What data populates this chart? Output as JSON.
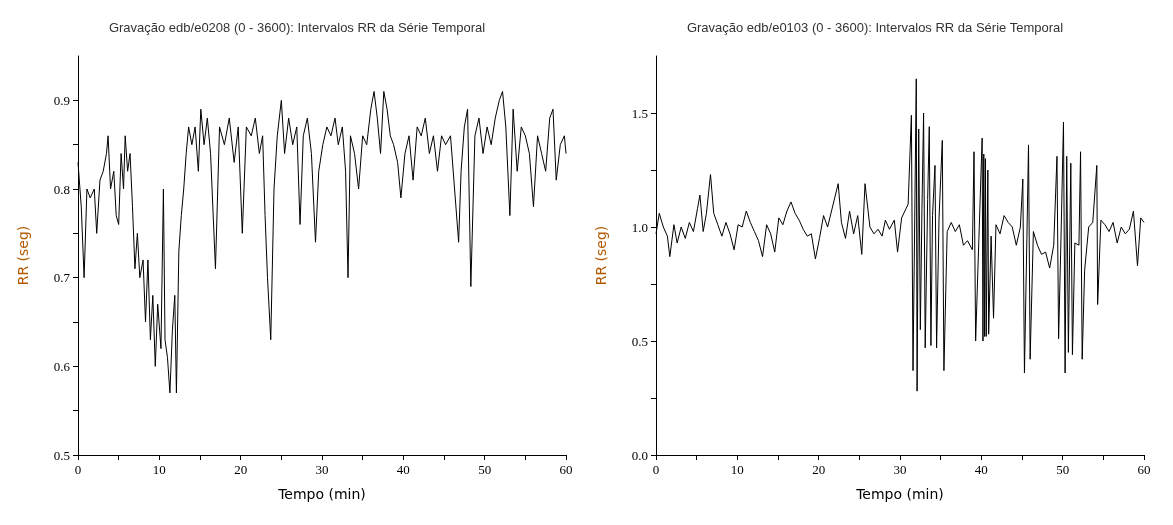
{
  "chart_data": [
    {
      "type": "line",
      "title": "Gravação edb/e0208 (0 - 3600): Intervalos RR da Série Temporal",
      "xlabel": "Tempo (min)",
      "ylabel": "RR (seg)",
      "xlim": [
        0,
        60
      ],
      "ylim": [
        0.5,
        0.95
      ],
      "xticks": [
        0,
        {
          "value": 5,
          "label": null
        },
        10,
        {
          "value": 15,
          "label": null
        },
        20,
        {
          "value": 25,
          "label": null
        },
        30,
        {
          "value": 35,
          "label": null
        },
        40,
        {
          "value": 45,
          "label": null
        },
        50,
        {
          "value": 55,
          "label": null
        },
        60
      ],
      "yticks": [
        0.5,
        {
          "value": 0.55,
          "label": null
        },
        0.6,
        {
          "value": 0.65,
          "label": null
        },
        0.7,
        {
          "value": 0.75,
          "label": null
        },
        0.8,
        {
          "value": 0.85,
          "label": null
        },
        0.9
      ],
      "grid": false,
      "marker": "none",
      "line_style": "solid",
      "series": [
        {
          "color": "#000000",
          "x": [
            0,
            0.4,
            0.75,
            1.1,
            1.5,
            2,
            2.3,
            2.7,
            3.1,
            3.5,
            3.7,
            4,
            4.4,
            4.7,
            5,
            5.3,
            5.6,
            5.8,
            6.1,
            6.4,
            6.7,
            7,
            7.3,
            7.6,
            8,
            8.3,
            8.6,
            8.9,
            9.2,
            9.5,
            9.8,
            10.2,
            10.5,
            10.7,
            11,
            11.3,
            11.6,
            11.9,
            12.1,
            12.4,
            12.7,
            13,
            13.3,
            13.6,
            14,
            14.4,
            14.8,
            15.1,
            15.5,
            15.9,
            16.3,
            16.9,
            17.4,
            18,
            18.6,
            19.2,
            19.7,
            20.2,
            20.7,
            21.3,
            21.8,
            22.3,
            22.7,
            23,
            23.3,
            23.7,
            24.1,
            24.5,
            25,
            25.4,
            25.9,
            26.4,
            26.9,
            27.3,
            27.7,
            28.2,
            28.7,
            29.2,
            29.6,
            30.1,
            30.6,
            31.1,
            31.6,
            32,
            32.5,
            32.9,
            33.2,
            33.5,
            34,
            34.5,
            35,
            35.5,
            36,
            36.4,
            36.8,
            37.2,
            37.6,
            38,
            38.4,
            38.8,
            39.3,
            39.7,
            40.2,
            40.7,
            41.2,
            41.7,
            42.2,
            42.7,
            43.2,
            43.7,
            44.2,
            44.7,
            45.2,
            45.8,
            46.3,
            46.8,
            47.1,
            47.5,
            47.9,
            48.3,
            48.8,
            49.3,
            49.8,
            50.3,
            50.8,
            51.3,
            51.8,
            52.2,
            52.6,
            53.1,
            53.5,
            54,
            54.5,
            55,
            55.5,
            56,
            56.5,
            57,
            57.5,
            58,
            58.4,
            58.8,
            59.3,
            59.8,
            60
          ],
          "values": [
            0.83,
            0.78,
            0.7,
            0.8,
            0.79,
            0.8,
            0.75,
            0.81,
            0.82,
            0.84,
            0.86,
            0.8,
            0.82,
            0.77,
            0.76,
            0.84,
            0.8,
            0.86,
            0.82,
            0.84,
            0.78,
            0.71,
            0.75,
            0.7,
            0.72,
            0.65,
            0.72,
            0.63,
            0.68,
            0.6,
            0.67,
            0.62,
            0.8,
            0.63,
            0.61,
            0.57,
            0.64,
            0.68,
            0.57,
            0.73,
            0.77,
            0.8,
            0.84,
            0.87,
            0.85,
            0.87,
            0.82,
            0.89,
            0.85,
            0.88,
            0.84,
            0.71,
            0.87,
            0.85,
            0.88,
            0.83,
            0.87,
            0.75,
            0.87,
            0.86,
            0.88,
            0.84,
            0.86,
            0.77,
            0.7,
            0.63,
            0.8,
            0.86,
            0.9,
            0.84,
            0.88,
            0.85,
            0.87,
            0.76,
            0.86,
            0.88,
            0.84,
            0.74,
            0.82,
            0.85,
            0.87,
            0.86,
            0.88,
            0.85,
            0.87,
            0.82,
            0.7,
            0.86,
            0.84,
            0.8,
            0.86,
            0.85,
            0.89,
            0.91,
            0.88,
            0.84,
            0.91,
            0.89,
            0.86,
            0.85,
            0.83,
            0.79,
            0.84,
            0.86,
            0.81,
            0.87,
            0.86,
            0.88,
            0.84,
            0.86,
            0.82,
            0.86,
            0.85,
            0.86,
            0.8,
            0.74,
            0.82,
            0.87,
            0.89,
            0.69,
            0.86,
            0.88,
            0.84,
            0.87,
            0.85,
            0.88,
            0.9,
            0.91,
            0.87,
            0.77,
            0.89,
            0.82,
            0.87,
            0.86,
            0.84,
            0.78,
            0.86,
            0.84,
            0.82,
            0.88,
            0.89,
            0.81,
            0.85,
            0.86,
            0.84
          ]
        }
      ]
    },
    {
      "type": "line",
      "title": "Gravação edb/e0103 (0 - 3600): Intervalos RR da Série Temporal",
      "xlabel": "Tempo (min)",
      "ylabel": "RR (seg)",
      "xlim": [
        0,
        60
      ],
      "ylim": [
        0,
        1.75
      ],
      "xticks": [
        0,
        {
          "value": 5,
          "label": null
        },
        10,
        {
          "value": 15,
          "label": null
        },
        20,
        {
          "value": 25,
          "label": null
        },
        30,
        {
          "value": 35,
          "label": null
        },
        40,
        {
          "value": 45,
          "label": null
        },
        50,
        {
          "value": 55,
          "label": null
        },
        60
      ],
      "yticks": [
        {
          "value": 0,
          "label": "0.0"
        },
        {
          "value": 0.25,
          "label": null
        },
        0.5,
        {
          "value": 0.75,
          "label": null
        },
        {
          "value": 1,
          "label": "1.0"
        },
        {
          "value": 1.25,
          "label": null
        },
        1.5
      ],
      "grid": false,
      "marker": "none",
      "line_style": "solid",
      "series": [
        {
          "color": "#000000",
          "x": [
            0,
            0.4,
            0.9,
            1.4,
            1.7,
            2.2,
            2.6,
            3.1,
            3.6,
            4.1,
            4.6,
            5.1,
            5.4,
            5.8,
            6.2,
            6.7,
            7.1,
            7.6,
            8.1,
            8.6,
            9.1,
            9.6,
            10.1,
            10.6,
            11.1,
            11.6,
            12.1,
            12.6,
            13.1,
            13.6,
            14.1,
            14.6,
            15.1,
            15.6,
            16.1,
            16.6,
            17.1,
            17.6,
            18.1,
            18.6,
            19.1,
            19.6,
            20.1,
            20.6,
            21.1,
            22.4,
            22.8,
            23.3,
            23.8,
            24.3,
            24.8,
            25.3,
            25.7,
            26.3,
            26.8,
            27.3,
            27.8,
            28.2,
            28.7,
            29.3,
            29.7,
            30.2,
            30.6,
            31,
            31.4,
            31.6,
            31.8,
            32,
            32.1,
            32.3,
            32.5,
            32.7,
            32.9,
            33.1,
            33.4,
            33.6,
            33.8,
            34,
            34.3,
            34.5,
            34.8,
            35.2,
            35.4,
            35.8,
            36.3,
            36.8,
            37.3,
            37.8,
            38.3,
            38.9,
            39.1,
            39.3,
            39.7,
            40.1,
            40.2,
            40.3,
            40.4,
            40.5,
            40.6,
            40.8,
            40.9,
            41.2,
            41.5,
            41.8,
            42.3,
            42.8,
            43.3,
            43.8,
            44.3,
            44.8,
            45.1,
            45.3,
            45.6,
            45.8,
            46,
            46.4,
            46.9,
            47.4,
            47.9,
            48.4,
            48.9,
            49.3,
            49.5,
            49.8,
            50.1,
            50.3,
            50.5,
            50.7,
            51,
            51.2,
            51.5,
            52,
            52.2,
            52.4,
            52.7,
            53.2,
            53.7,
            54.2,
            54.3,
            54.7,
            55.2,
            55.7,
            56.2,
            56.7,
            57.2,
            57.7,
            58.2,
            58.7,
            59.2,
            59.6,
            60
          ],
          "values": [
            0.97,
            1.06,
            1.0,
            0.96,
            0.87,
            1.01,
            0.93,
            1.0,
            0.95,
            1.02,
            0.98,
            1.08,
            1.14,
            0.98,
            1.06,
            1.23,
            1.06,
            1.01,
            0.96,
            1.02,
            0.97,
            0.9,
            1.01,
            1.0,
            1.07,
            1.02,
            0.98,
            0.94,
            0.87,
            1.01,
            0.97,
            0.89,
            1.04,
            1.01,
            1.07,
            1.11,
            1.06,
            1.03,
            0.99,
            0.96,
            0.97,
            0.86,
            0.95,
            1.05,
            1.0,
            1.19,
            1.02,
            0.95,
            1.07,
            0.97,
            1.05,
            0.88,
            1.19,
            1.0,
            0.97,
            0.99,
            0.96,
            1.03,
            0.99,
            1.03,
            0.89,
            1.04,
            1.07,
            1.1,
            1.49,
            0.37,
            1.0,
            1.65,
            0.28,
            1.43,
            0.55,
            1.08,
            1.5,
            0.47,
            1.12,
            1.44,
            0.48,
            1.05,
            1.27,
            0.47,
            1.04,
            1.38,
            0.37,
            0.98,
            1.02,
            0.98,
            1.01,
            0.92,
            0.94,
            0.9,
            1.33,
            0.5,
            0.95,
            1.39,
            0.5,
            1.32,
            0.52,
            1.3,
            0.52,
            1.25,
            0.53,
            0.96,
            0.6,
            1.01,
            0.97,
            1.05,
            1.02,
            1.0,
            0.92,
            1.0,
            1.21,
            0.36,
            0.95,
            1.36,
            0.42,
            0.98,
            0.92,
            0.88,
            0.89,
            0.82,
            0.92,
            1.31,
            0.51,
            0.96,
            1.46,
            0.36,
            1.31,
            0.45,
            1.28,
            0.44,
            0.93,
            0.92,
            1.33,
            0.42,
            0.81,
            1.0,
            1.02,
            1.27,
            0.66,
            1.03,
            1.01,
            0.98,
            1.02,
            0.93,
            1.0,
            0.97,
            0.99,
            1.07,
            0.83,
            1.04,
            1.02
          ]
        }
      ]
    }
  ]
}
